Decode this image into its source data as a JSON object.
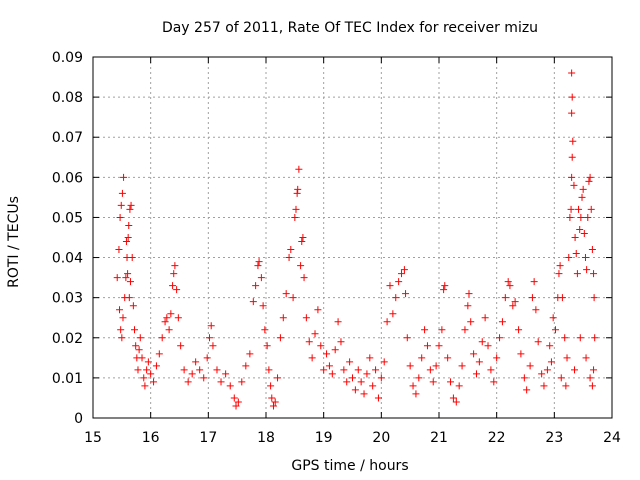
{
  "chart_data": {
    "type": "scatter",
    "title": "Day 257 of 2011, Rate Of TEC Index for receiver mizu",
    "xlabel": "GPS time / hours",
    "ylabel": "ROTI / TECUs",
    "xlim": [
      15,
      24
    ],
    "ylim": [
      0,
      0.09
    ],
    "xticks": [
      15,
      16,
      17,
      18,
      19,
      20,
      21,
      22,
      23,
      24
    ],
    "xtick_labels": [
      "15",
      "16",
      "17",
      "18",
      "19",
      "20",
      "21",
      "22",
      "23",
      "24"
    ],
    "yticks": [
      0,
      0.01,
      0.02,
      0.03,
      0.04,
      0.05,
      0.06,
      0.07,
      0.08,
      0.09
    ],
    "ytick_labels": [
      "0",
      "0.01",
      "0.02",
      "0.03",
      "0.04",
      "0.05",
      "0.06",
      "0.07",
      "0.08",
      "0.09"
    ],
    "grid": true,
    "marker": "+",
    "color": "#ff0000",
    "series": [
      {
        "name": "ROTI",
        "points": [
          [
            15.42,
            0.035
          ],
          [
            15.45,
            0.042
          ],
          [
            15.47,
            0.05
          ],
          [
            15.49,
            0.053
          ],
          [
            15.51,
            0.056
          ],
          [
            15.53,
            0.06
          ],
          [
            15.46,
            0.027
          ],
          [
            15.48,
            0.022
          ],
          [
            15.5,
            0.02
          ],
          [
            15.52,
            0.025
          ],
          [
            15.55,
            0.03
          ],
          [
            15.57,
            0.035
          ],
          [
            15.59,
            0.04
          ],
          [
            15.61,
            0.045
          ],
          [
            15.62,
            0.048
          ],
          [
            15.64,
            0.052
          ],
          [
            15.66,
            0.053
          ],
          [
            15.58,
            0.044
          ],
          [
            15.6,
            0.036
          ],
          [
            15.63,
            0.03
          ],
          [
            15.65,
            0.034
          ],
          [
            15.68,
            0.04
          ],
          [
            15.7,
            0.028
          ],
          [
            15.72,
            0.022
          ],
          [
            15.74,
            0.018
          ],
          [
            15.76,
            0.015
          ],
          [
            15.78,
            0.012
          ],
          [
            15.8,
            0.017
          ],
          [
            15.82,
            0.02
          ],
          [
            15.85,
            0.015
          ],
          [
            15.88,
            0.01
          ],
          [
            15.9,
            0.008
          ],
          [
            15.93,
            0.012
          ],
          [
            15.96,
            0.014
          ],
          [
            16.0,
            0.011
          ],
          [
            16.05,
            0.009
          ],
          [
            16.1,
            0.013
          ],
          [
            16.15,
            0.016
          ],
          [
            16.2,
            0.02
          ],
          [
            16.25,
            0.024
          ],
          [
            16.28,
            0.025
          ],
          [
            16.32,
            0.022
          ],
          [
            16.35,
            0.026
          ],
          [
            16.38,
            0.033
          ],
          [
            16.4,
            0.036
          ],
          [
            16.42,
            0.038
          ],
          [
            16.45,
            0.032
          ],
          [
            16.48,
            0.025
          ],
          [
            16.52,
            0.018
          ],
          [
            16.58,
            0.012
          ],
          [
            16.65,
            0.009
          ],
          [
            16.72,
            0.011
          ],
          [
            16.78,
            0.014
          ],
          [
            16.85,
            0.012
          ],
          [
            16.92,
            0.01
          ],
          [
            16.98,
            0.015
          ],
          [
            17.02,
            0.02
          ],
          [
            17.05,
            0.023
          ],
          [
            17.08,
            0.018
          ],
          [
            17.15,
            0.012
          ],
          [
            17.22,
            0.009
          ],
          [
            17.3,
            0.011
          ],
          [
            17.38,
            0.008
          ],
          [
            17.45,
            0.005
          ],
          [
            17.48,
            0.003
          ],
          [
            17.52,
            0.004
          ],
          [
            17.58,
            0.009
          ],
          [
            17.65,
            0.013
          ],
          [
            17.72,
            0.016
          ],
          [
            17.78,
            0.029
          ],
          [
            17.82,
            0.033
          ],
          [
            17.86,
            0.038
          ],
          [
            17.88,
            0.039
          ],
          [
            17.92,
            0.035
          ],
          [
            17.95,
            0.028
          ],
          [
            17.98,
            0.022
          ],
          [
            18.02,
            0.018
          ],
          [
            18.05,
            0.012
          ],
          [
            18.08,
            0.008
          ],
          [
            18.1,
            0.005
          ],
          [
            18.13,
            0.003
          ],
          [
            18.16,
            0.004
          ],
          [
            18.2,
            0.01
          ],
          [
            18.25,
            0.02
          ],
          [
            18.3,
            0.025
          ],
          [
            18.35,
            0.031
          ],
          [
            18.4,
            0.04
          ],
          [
            18.43,
            0.042
          ],
          [
            18.47,
            0.03
          ],
          [
            18.5,
            0.05
          ],
          [
            18.52,
            0.052
          ],
          [
            18.54,
            0.056
          ],
          [
            18.55,
            0.057
          ],
          [
            18.57,
            0.062
          ],
          [
            18.6,
            0.038
          ],
          [
            18.62,
            0.044
          ],
          [
            18.64,
            0.045
          ],
          [
            18.66,
            0.035
          ],
          [
            18.7,
            0.025
          ],
          [
            18.75,
            0.019
          ],
          [
            18.8,
            0.015
          ],
          [
            18.85,
            0.021
          ],
          [
            18.9,
            0.027
          ],
          [
            18.95,
            0.018
          ],
          [
            19.0,
            0.012
          ],
          [
            19.05,
            0.016
          ],
          [
            19.1,
            0.013
          ],
          [
            19.15,
            0.011
          ],
          [
            19.2,
            0.017
          ],
          [
            19.25,
            0.024
          ],
          [
            19.3,
            0.019
          ],
          [
            19.35,
            0.012
          ],
          [
            19.4,
            0.009
          ],
          [
            19.45,
            0.014
          ],
          [
            19.5,
            0.01
          ],
          [
            19.55,
            0.007
          ],
          [
            19.6,
            0.012
          ],
          [
            19.65,
            0.009
          ],
          [
            19.7,
            0.006
          ],
          [
            19.75,
            0.011
          ],
          [
            19.8,
            0.015
          ],
          [
            19.85,
            0.008
          ],
          [
            19.9,
            0.012
          ],
          [
            19.95,
            0.005
          ],
          [
            20.0,
            0.01
          ],
          [
            20.05,
            0.014
          ],
          [
            20.1,
            0.024
          ],
          [
            20.15,
            0.033
          ],
          [
            20.2,
            0.026
          ],
          [
            20.25,
            0.03
          ],
          [
            20.3,
            0.034
          ],
          [
            20.35,
            0.036
          ],
          [
            20.4,
            0.037
          ],
          [
            20.42,
            0.031
          ],
          [
            20.45,
            0.02
          ],
          [
            20.5,
            0.013
          ],
          [
            20.55,
            0.008
          ],
          [
            20.6,
            0.006
          ],
          [
            20.65,
            0.01
          ],
          [
            20.7,
            0.015
          ],
          [
            20.75,
            0.022
          ],
          [
            20.8,
            0.018
          ],
          [
            20.85,
            0.012
          ],
          [
            20.9,
            0.009
          ],
          [
            20.95,
            0.013
          ],
          [
            21.0,
            0.018
          ],
          [
            21.05,
            0.022
          ],
          [
            21.08,
            0.032
          ],
          [
            21.1,
            0.033
          ],
          [
            21.15,
            0.015
          ],
          [
            21.2,
            0.009
          ],
          [
            21.25,
            0.005
          ],
          [
            21.3,
            0.004
          ],
          [
            21.35,
            0.008
          ],
          [
            21.4,
            0.013
          ],
          [
            21.45,
            0.022
          ],
          [
            21.5,
            0.028
          ],
          [
            21.52,
            0.031
          ],
          [
            21.55,
            0.024
          ],
          [
            21.6,
            0.016
          ],
          [
            21.65,
            0.011
          ],
          [
            21.7,
            0.014
          ],
          [
            21.75,
            0.019
          ],
          [
            21.8,
            0.025
          ],
          [
            21.85,
            0.018
          ],
          [
            21.9,
            0.012
          ],
          [
            21.95,
            0.009
          ],
          [
            22.0,
            0.015
          ],
          [
            22.05,
            0.02
          ],
          [
            22.1,
            0.024
          ],
          [
            22.15,
            0.03
          ],
          [
            22.2,
            0.034
          ],
          [
            22.23,
            0.033
          ],
          [
            22.28,
            0.028
          ],
          [
            22.32,
            0.029
          ],
          [
            22.38,
            0.022
          ],
          [
            22.42,
            0.016
          ],
          [
            22.48,
            0.01
          ],
          [
            22.52,
            0.007
          ],
          [
            22.58,
            0.013
          ],
          [
            22.62,
            0.03
          ],
          [
            22.65,
            0.034
          ],
          [
            22.68,
            0.027
          ],
          [
            22.72,
            0.019
          ],
          [
            22.78,
            0.011
          ],
          [
            22.82,
            0.008
          ],
          [
            22.88,
            0.012
          ],
          [
            22.92,
            0.018
          ],
          [
            22.98,
            0.025
          ],
          [
            23.02,
            0.022
          ],
          [
            23.06,
            0.03
          ],
          [
            23.08,
            0.036
          ],
          [
            23.1,
            0.038
          ],
          [
            23.14,
            0.03
          ],
          [
            23.18,
            0.02
          ],
          [
            23.22,
            0.015
          ],
          [
            23.25,
            0.04
          ],
          [
            23.27,
            0.05
          ],
          [
            23.29,
            0.052
          ],
          [
            23.3,
            0.06
          ],
          [
            23.31,
            0.065
          ],
          [
            23.32,
            0.069
          ],
          [
            23.3,
            0.076
          ],
          [
            23.31,
            0.08
          ],
          [
            23.3,
            0.086
          ],
          [
            23.34,
            0.058
          ],
          [
            23.36,
            0.045
          ],
          [
            23.38,
            0.041
          ],
          [
            23.4,
            0.036
          ],
          [
            23.42,
            0.052
          ],
          [
            23.44,
            0.047
          ],
          [
            23.46,
            0.05
          ],
          [
            23.48,
            0.055
          ],
          [
            23.5,
            0.057
          ],
          [
            23.52,
            0.046
          ],
          [
            23.54,
            0.04
          ],
          [
            23.56,
            0.037
          ],
          [
            23.58,
            0.05
          ],
          [
            23.6,
            0.059
          ],
          [
            23.62,
            0.06
          ],
          [
            23.64,
            0.052
          ],
          [
            23.66,
            0.042
          ],
          [
            23.68,
            0.036
          ],
          [
            23.69,
            0.03
          ],
          [
            23.7,
            0.02
          ],
          [
            23.68,
            0.012
          ],
          [
            23.66,
            0.008
          ],
          [
            23.62,
            0.01
          ],
          [
            23.55,
            0.015
          ],
          [
            23.45,
            0.02
          ],
          [
            23.35,
            0.012
          ],
          [
            23.2,
            0.008
          ],
          [
            23.12,
            0.01
          ],
          [
            22.95,
            0.014
          ]
        ]
      }
    ]
  }
}
